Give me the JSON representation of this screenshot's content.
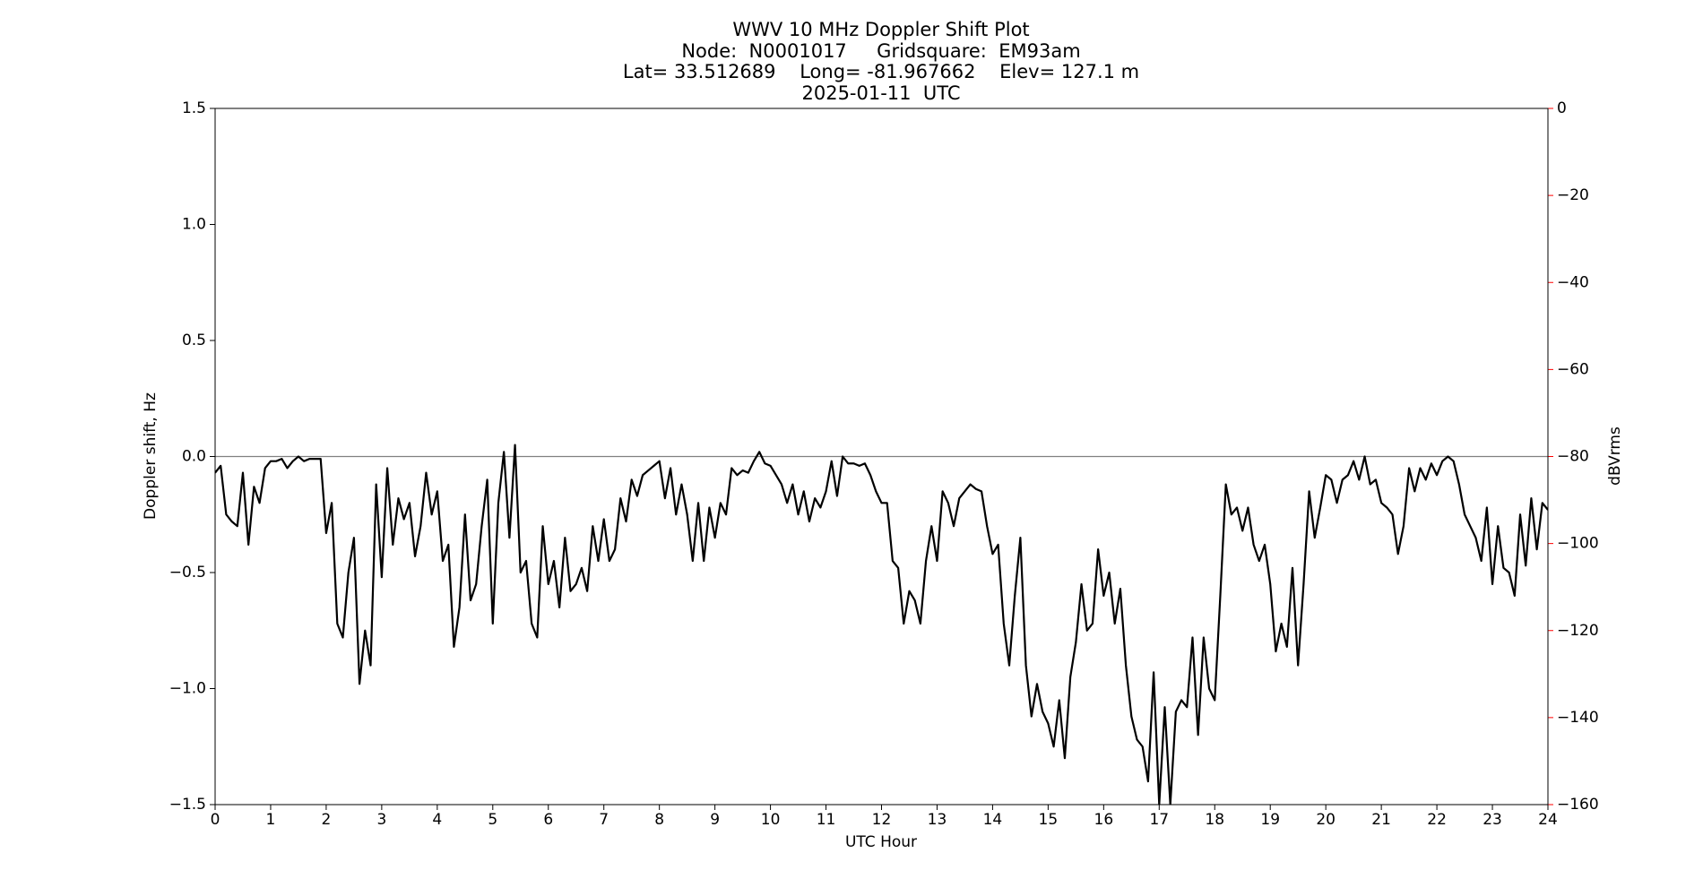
{
  "chart_data": {
    "type": "line",
    "title": "WWV 10 MHz Doppler Shift Plot",
    "subtitle": [
      "Node:  N0001017     Gridsquare:  EM93am",
      "Lat= 33.512689    Long= -81.967662    Elev= 127.1 m",
      "2025-01-11  UTC"
    ],
    "xlabel": "UTC Hour",
    "ylabel": "Doppler shift, Hz",
    "y2label": "dBVrms",
    "y2color": "#ff0000",
    "xlim": [
      0,
      24
    ],
    "xticks": [
      0,
      1,
      2,
      3,
      4,
      5,
      6,
      7,
      8,
      9,
      10,
      11,
      12,
      13,
      14,
      15,
      16,
      17,
      18,
      19,
      20,
      21,
      22,
      23,
      24
    ],
    "ylim": [
      -1.5,
      1.5
    ],
    "yticks": [
      {
        "value": -1.5,
        "label": "−1.5"
      },
      {
        "value": -1,
        "label": "−1.0"
      },
      {
        "value": -0.5,
        "label": "−0.5"
      },
      {
        "value": 0,
        "label": "0.0"
      },
      0.5,
      {
        "value": 1,
        "label": "1.0"
      },
      1.5
    ],
    "y2lim": [
      -160,
      0
    ],
    "y2ticks": [
      {
        "value": -160,
        "label": "−160"
      },
      {
        "value": -140,
        "label": "−140"
      },
      {
        "value": -120,
        "label": "−120"
      },
      {
        "value": -100,
        "label": "−100"
      },
      {
        "value": -80,
        "label": "−80"
      },
      {
        "value": -60,
        "label": "−60"
      },
      {
        "value": -40,
        "label": "−40"
      },
      {
        "value": -20,
        "label": "−20"
      },
      0
    ],
    "hline": 0,
    "hline_color": "#808080",
    "x": [
      0,
      0.1,
      0.2,
      0.3,
      0.4,
      0.5,
      0.6,
      0.7,
      0.8,
      0.9,
      1,
      1.1,
      1.2,
      1.3,
      1.4,
      1.5,
      1.6,
      1.7,
      1.8,
      1.9,
      2,
      2.1,
      2.2,
      2.3,
      2.4,
      2.5,
      2.6,
      2.7,
      2.8,
      2.9,
      3,
      3.1,
      3.2,
      3.3,
      3.4,
      3.5,
      3.6,
      3.7,
      3.8,
      3.9,
      4,
      4.1,
      4.2,
      4.3,
      4.4,
      4.5,
      4.6,
      4.7,
      4.8,
      4.9,
      5,
      5.1,
      5.2,
      5.3,
      5.4,
      5.5,
      5.6,
      5.7,
      5.8,
      5.9,
      6,
      6.1,
      6.2,
      6.3,
      6.4,
      6.5,
      6.6,
      6.7,
      6.8,
      6.9,
      7,
      7.1,
      7.2,
      7.3,
      7.4,
      7.5,
      7.6,
      7.7,
      7.8,
      7.9,
      8,
      8.1,
      8.2,
      8.3,
      8.4,
      8.5,
      8.6,
      8.7,
      8.8,
      8.9,
      9,
      9.1,
      9.2,
      9.3,
      9.4,
      9.5,
      9.6,
      9.7,
      9.8,
      9.9,
      10,
      10.1,
      10.2,
      10.3,
      10.4,
      10.5,
      10.6,
      10.7,
      10.8,
      10.9,
      11,
      11.1,
      11.2,
      11.3,
      11.4,
      11.5,
      11.6,
      11.7,
      11.8,
      11.9,
      12,
      12.1,
      12.2,
      12.3,
      12.4,
      12.5,
      12.6,
      12.7,
      12.8,
      12.9,
      13,
      13.1,
      13.2,
      13.3,
      13.4,
      13.5,
      13.6,
      13.7,
      13.8,
      13.9,
      14,
      14.1,
      14.2,
      14.3,
      14.4,
      14.5,
      14.6,
      14.7,
      14.8,
      14.9,
      15,
      15.1,
      15.2,
      15.3,
      15.4,
      15.5,
      15.6,
      15.7,
      15.8,
      15.9,
      16,
      16.1,
      16.2,
      16.3,
      16.4,
      16.5,
      16.6,
      16.7,
      16.8,
      16.9,
      17,
      17.1,
      17.2,
      17.3,
      17.4,
      17.5,
      17.6,
      17.7,
      17.8,
      17.9,
      18,
      18.1,
      18.2,
      18.3,
      18.4,
      18.5,
      18.6,
      18.7,
      18.8,
      18.9,
      19,
      19.1,
      19.2,
      19.3,
      19.4,
      19.5,
      19.6,
      19.7,
      19.8,
      19.9,
      20,
      20.1,
      20.2,
      20.3,
      20.4,
      20.5,
      20.6,
      20.7,
      20.8,
      20.9,
      21,
      21.1,
      21.2,
      21.3,
      21.4,
      21.5,
      21.6,
      21.7,
      21.8,
      21.9,
      22,
      22.1,
      22.2,
      22.3,
      22.4,
      22.5,
      22.6,
      22.7,
      22.8,
      22.9,
      23,
      23.1,
      23.2,
      23.3,
      23.4,
      23.5,
      23.6,
      23.7,
      23.8,
      23.9,
      24
    ],
    "series": [
      {
        "name": "Doppler shift",
        "color": "#000000",
        "values": [
          -0.07,
          -0.04,
          -0.25,
          -0.28,
          -0.3,
          -0.07,
          -0.38,
          -0.13,
          -0.2,
          -0.05,
          -0.02,
          -0.02,
          -0.01,
          -0.05,
          -0.02,
          0,
          -0.02,
          -0.01,
          -0.01,
          -0.01,
          -0.33,
          -0.2,
          -0.72,
          -0.78,
          -0.5,
          -0.35,
          -0.98,
          -0.75,
          -0.9,
          -0.12,
          -0.52,
          -0.05,
          -0.38,
          -0.18,
          -0.27,
          -0.2,
          -0.43,
          -0.3,
          -0.07,
          -0.25,
          -0.15,
          -0.45,
          -0.38,
          -0.82,
          -0.65,
          -0.25,
          -0.62,
          -0.55,
          -0.3,
          -0.1,
          -0.72,
          -0.2,
          0.02,
          -0.35,
          0.05,
          -0.5,
          -0.45,
          -0.72,
          -0.78,
          -0.3,
          -0.55,
          -0.45,
          -0.65,
          -0.35,
          -0.58,
          -0.55,
          -0.48,
          -0.58,
          -0.3,
          -0.45,
          -0.27,
          -0.45,
          -0.4,
          -0.18,
          -0.28,
          -0.1,
          -0.17,
          -0.08,
          -0.06,
          -0.04,
          -0.02,
          -0.18,
          -0.05,
          -0.25,
          -0.12,
          -0.25,
          -0.45,
          -0.2,
          -0.45,
          -0.22,
          -0.35,
          -0.2,
          -0.25,
          -0.05,
          -0.08,
          -0.06,
          -0.07,
          -0.02,
          0.02,
          -0.03,
          -0.04,
          -0.08,
          -0.12,
          -0.2,
          -0.12,
          -0.25,
          -0.15,
          -0.28,
          -0.18,
          -0.22,
          -0.15,
          -0.02,
          -0.17,
          0,
          -0.03,
          -0.03,
          -0.04,
          -0.03,
          -0.08,
          -0.15,
          -0.2,
          -0.2,
          -0.45,
          -0.48,
          -0.72,
          -0.58,
          -0.62,
          -0.72,
          -0.45,
          -0.3,
          -0.45,
          -0.15,
          -0.2,
          -0.3,
          -0.18,
          -0.15,
          -0.12,
          -0.14,
          -0.15,
          -0.3,
          -0.42,
          -0.38,
          -0.72,
          -0.9,
          -0.6,
          -0.35,
          -0.9,
          -1.12,
          -0.98,
          -1.1,
          -1.15,
          -1.25,
          -1.05,
          -1.3,
          -0.95,
          -0.8,
          -0.55,
          -0.75,
          -0.72,
          -0.4,
          -0.6,
          -0.5,
          -0.72,
          -0.57,
          -0.9,
          -1.12,
          -1.22,
          -1.25,
          -1.4,
          -0.93,
          -1.5,
          -1.08,
          -1.5,
          -1.1,
          -1.05,
          -1.08,
          -0.78,
          -1.2,
          -0.78,
          -1,
          -1.05,
          -0.6,
          -0.12,
          -0.25,
          -0.22,
          -0.32,
          -0.22,
          -0.38,
          -0.45,
          -0.38,
          -0.55,
          -0.84,
          -0.72,
          -0.82,
          -0.48,
          -0.9,
          -0.55,
          -0.15,
          -0.35,
          -0.22,
          -0.08,
          -0.1,
          -0.2,
          -0.1,
          -0.08,
          -0.02,
          -0.1,
          0,
          -0.12,
          -0.1,
          -0.2,
          -0.22,
          -0.25,
          -0.42,
          -0.3,
          -0.05,
          -0.15,
          -0.05,
          -0.1,
          -0.03,
          -0.08,
          -0.02,
          0,
          -0.02,
          -0.12,
          -0.25,
          -0.3,
          -0.35,
          -0.45,
          -0.22,
          -0.55,
          -0.3,
          -0.48,
          -0.5,
          -0.6,
          -0.25,
          -0.47,
          -0.18,
          -0.4,
          -0.2,
          -0.23
        ]
      }
    ]
  }
}
